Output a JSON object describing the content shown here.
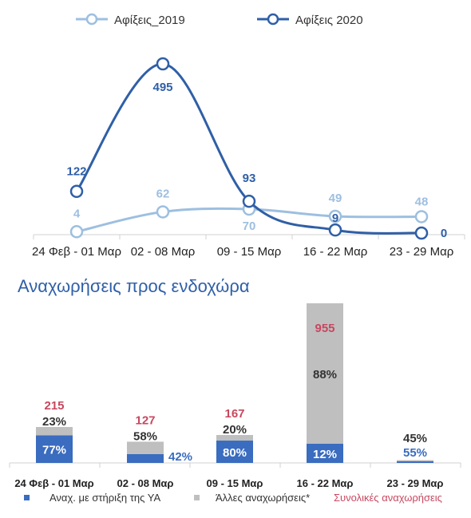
{
  "chart_data": [
    {
      "type": "line",
      "categories": [
        "24 Φεβ - 01 Μαρ",
        "02 - 08 Μαρ",
        "09 - 15 Μαρ",
        "16 - 22 Μαρ",
        "23 - 29 Μαρ"
      ],
      "series": [
        {
          "name": "Αφίξεις_2019",
          "values": [
            4,
            62,
            70,
            49,
            48
          ],
          "color": "#9dbfe0"
        },
        {
          "name": "Αφίξεις 2020",
          "values": [
            122,
            495,
            93,
            9,
            0
          ],
          "color": "#2f5fa7"
        }
      ],
      "legend": "top",
      "grid": false
    },
    {
      "type": "bar",
      "title": "Αναχωρήσεις προς ενδοχώρα",
      "categories": [
        "24 Φεβ - 01 Μαρ",
        "02 - 08 Μαρ",
        "09 - 15 Μαρ",
        "16 - 22 Μαρ",
        "23 - 29 Μαρ"
      ],
      "totals": [
        215,
        127,
        167,
        955,
        0
      ],
      "total_labels": [
        "215",
        "127",
        "167",
        "955",
        ""
      ],
      "series": [
        {
          "name": "Αναχ. με στήριξη της ΥΑ",
          "percent_labels": [
            "77%",
            "42%",
            "80%",
            "12%",
            "55%"
          ],
          "shares": [
            0.77,
            0.42,
            0.8,
            0.12,
            0.55
          ],
          "color": "#3a6cc0"
        },
        {
          "name": "Άλλες αναχωρήσεις*",
          "percent_labels": [
            "23%",
            "58%",
            "20%",
            "88%",
            "45%"
          ],
          "shares": [
            0.23,
            0.58,
            0.2,
            0.88,
            0.45
          ],
          "color": "#bfbfbf"
        }
      ],
      "total_legend": "Συνολικές αναχωρήσεις",
      "total_color": "#c8475f",
      "legend": "bottom",
      "grid": false
    }
  ]
}
